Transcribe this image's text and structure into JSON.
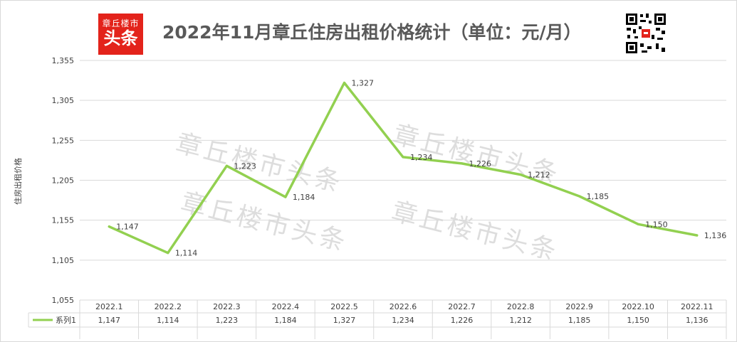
{
  "logo": {
    "line1": "章丘楼市",
    "line2": "头条"
  },
  "title": "2022年11月章丘住房出租价格统计（单位：元/月）",
  "watermark": "章丘楼市头条",
  "qr_icon": "qr-code-icon",
  "colors": {
    "series": "#92d050",
    "logo_bg": "#e3231b",
    "grid": "#d9d9d9",
    "text": "#404040"
  },
  "chart_data": {
    "type": "line",
    "ylabel": "住房出租价格",
    "xlabel": "",
    "ylim": [
      1055,
      1355
    ],
    "yticks": [
      "1,355",
      "1,305",
      "1,255",
      "1,205",
      "1,155",
      "1,105",
      "1,055"
    ],
    "ytick_values": [
      1355,
      1305,
      1255,
      1205,
      1155,
      1105,
      1055
    ],
    "categories": [
      "2022.1",
      "2022.2",
      "2022.3",
      "2022.4",
      "2022.5",
      "2022.6",
      "2022.7",
      "2022.8",
      "2022.9",
      "2022.10",
      "2022.11"
    ],
    "series": [
      {
        "name": "系列1",
        "values": [
          1147,
          1114,
          1223,
          1184,
          1327,
          1234,
          1226,
          1212,
          1185,
          1150,
          1136
        ],
        "labels": [
          "1,147",
          "1,114",
          "1,223",
          "1,184",
          "1,327",
          "1,234",
          "1,226",
          "1,212",
          "1,185",
          "1,150",
          "1,136"
        ]
      }
    ],
    "grid": true,
    "legend": "data-table"
  }
}
